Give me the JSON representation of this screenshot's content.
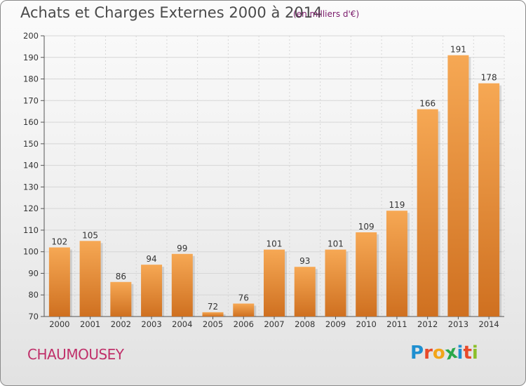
{
  "header": {
    "title": "Achats et Charges Externes 2000 à 2014",
    "unit": "(en milliers d'€)"
  },
  "footer": {
    "commune": "CHAUMOUSEY",
    "logo_letters": [
      "P",
      "r",
      "o",
      "x",
      "i",
      "t",
      "i"
    ],
    "logo_colors": [
      "#1f8fd0",
      "#e84a2a",
      "#f2a51a",
      "#2aa84a",
      "#1f8fd0",
      "#e84a2a",
      "#8bbf2a"
    ]
  },
  "chart_data": {
    "type": "bar",
    "title": "Achats et Charges Externes 2000 à 2014",
    "subtitle": "(en milliers d'€)",
    "categories": [
      "2000",
      "2001",
      "2002",
      "2003",
      "2004",
      "2005",
      "2006",
      "2007",
      "2008",
      "2009",
      "2010",
      "2011",
      "2012",
      "2013",
      "2014"
    ],
    "values": [
      102,
      105,
      86,
      94,
      99,
      72,
      76,
      101,
      93,
      101,
      109,
      119,
      166,
      191,
      178
    ],
    "ylim": [
      70,
      200
    ],
    "yticks": [
      70,
      80,
      90,
      100,
      110,
      120,
      130,
      140,
      150,
      160,
      170,
      180,
      190,
      200
    ],
    "grid": true,
    "bar_color_light": "#f6a854",
    "bar_color_dark": "#cf7020"
  }
}
